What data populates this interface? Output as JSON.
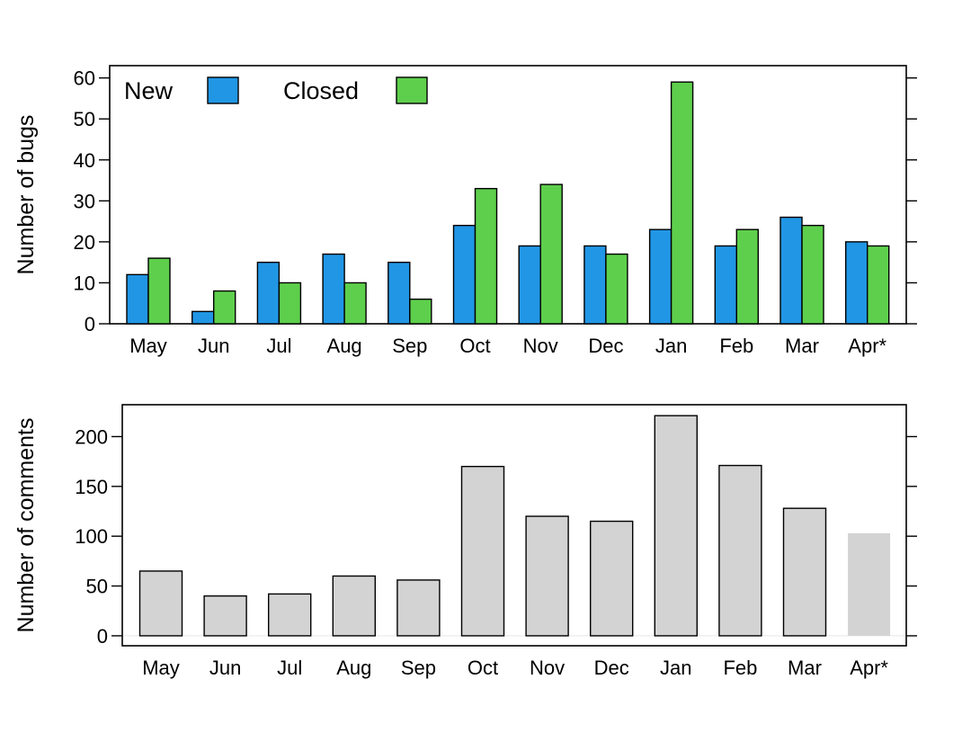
{
  "chart_data": [
    {
      "type": "bar",
      "title": "",
      "xlabel": "",
      "ylabel": "Number of bugs",
      "categories": [
        "May",
        "Jun",
        "Jul",
        "Aug",
        "Sep",
        "Oct",
        "Nov",
        "Dec",
        "Jan",
        "Feb",
        "Mar",
        "Apr*"
      ],
      "series": [
        {
          "name": "New",
          "color": "#2196E5",
          "values": [
            12,
            3,
            15,
            17,
            15,
            24,
            19,
            19,
            23,
            19,
            26,
            20
          ]
        },
        {
          "name": "Closed",
          "color": "#5ECF4C",
          "values": [
            16,
            8,
            10,
            10,
            6,
            33,
            34,
            17,
            59,
            23,
            24,
            19
          ]
        }
      ],
      "ylim": [
        0,
        63
      ],
      "yticks": [
        0,
        10,
        20,
        30,
        40,
        50,
        60
      ],
      "legend": "top-left",
      "grid": false
    },
    {
      "type": "bar",
      "title": "",
      "xlabel": "",
      "ylabel": "Number of comments",
      "categories": [
        "May",
        "Jun",
        "Jul",
        "Aug",
        "Sep",
        "Oct",
        "Nov",
        "Dec",
        "Jan",
        "Feb",
        "Mar",
        "Apr*"
      ],
      "values": [
        65,
        40,
        42,
        60,
        56,
        170,
        120,
        115,
        221,
        171,
        128,
        103
      ],
      "colors": [
        "#D3D3D3",
        "#D3D3D3",
        "#D3D3D3",
        "#D3D3D3",
        "#D3D3D3",
        "#D3D3D3",
        "#D3D3D3",
        "#D3D3D3",
        "#D3D3D3",
        "#D3D3D3",
        "#D3D3D3",
        "#D3D3D3"
      ],
      "outlined": [
        true,
        true,
        true,
        true,
        true,
        true,
        true,
        true,
        true,
        true,
        true,
        false
      ],
      "ylim": [
        -10,
        232
      ],
      "yticks": [
        0,
        50,
        100,
        150,
        200
      ],
      "grid": false
    }
  ]
}
